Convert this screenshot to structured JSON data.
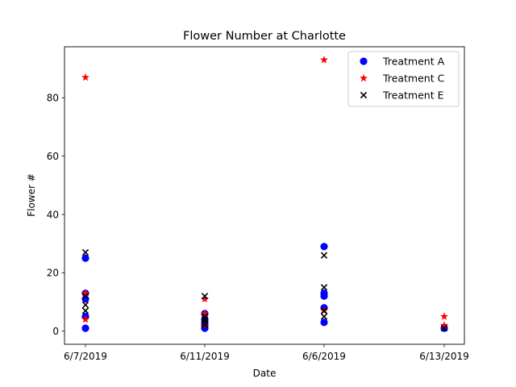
{
  "chart_data": {
    "type": "scatter",
    "title": "Flower Number at Charlotte",
    "xlabel": "Date",
    "ylabel": "Flower #",
    "categories": [
      "6/7/2019",
      "6/11/2019",
      "6/6/2019",
      "6/13/2019"
    ],
    "ylim": [
      -4.5,
      97.5
    ],
    "yticks": [
      0,
      20,
      40,
      60,
      80
    ],
    "grid": false,
    "legend_position": "top-right",
    "series": [
      {
        "name": "Treatment A",
        "marker": "circle",
        "color": "#0000ff",
        "points": [
          {
            "x": "6/7/2019",
            "y": 25
          },
          {
            "x": "6/7/2019",
            "y": 13
          },
          {
            "x": "6/7/2019",
            "y": 11
          },
          {
            "x": "6/7/2019",
            "y": 5
          },
          {
            "x": "6/7/2019",
            "y": 1
          },
          {
            "x": "6/11/2019",
            "y": 6
          },
          {
            "x": "6/11/2019",
            "y": 4
          },
          {
            "x": "6/11/2019",
            "y": 3
          },
          {
            "x": "6/11/2019",
            "y": 2
          },
          {
            "x": "6/11/2019",
            "y": 1
          },
          {
            "x": "6/6/2019",
            "y": 29
          },
          {
            "x": "6/6/2019",
            "y": 13
          },
          {
            "x": "6/6/2019",
            "y": 12
          },
          {
            "x": "6/6/2019",
            "y": 8
          },
          {
            "x": "6/6/2019",
            "y": 3
          },
          {
            "x": "6/13/2019",
            "y": 1
          }
        ]
      },
      {
        "name": "Treatment C",
        "marker": "star",
        "color": "#ff0000",
        "points": [
          {
            "x": "6/7/2019",
            "y": 87
          },
          {
            "x": "6/7/2019",
            "y": 13
          },
          {
            "x": "6/7/2019",
            "y": 4
          },
          {
            "x": "6/11/2019",
            "y": 11
          },
          {
            "x": "6/11/2019",
            "y": 6
          },
          {
            "x": "6/11/2019",
            "y": 2
          },
          {
            "x": "6/6/2019",
            "y": 93
          },
          {
            "x": "6/6/2019",
            "y": 7
          },
          {
            "x": "6/13/2019",
            "y": 5
          },
          {
            "x": "6/13/2019",
            "y": 2
          }
        ]
      },
      {
        "name": "Treatment E",
        "marker": "x",
        "color": "#000000",
        "points": [
          {
            "x": "6/7/2019",
            "y": 27
          },
          {
            "x": "6/7/2019",
            "y": 12
          },
          {
            "x": "6/7/2019",
            "y": 9
          },
          {
            "x": "6/7/2019",
            "y": 7
          },
          {
            "x": "6/11/2019",
            "y": 12
          },
          {
            "x": "6/11/2019",
            "y": 5
          },
          {
            "x": "6/11/2019",
            "y": 4
          },
          {
            "x": "6/11/2019",
            "y": 3
          },
          {
            "x": "6/11/2019",
            "y": 2
          },
          {
            "x": "6/6/2019",
            "y": 26
          },
          {
            "x": "6/6/2019",
            "y": 15
          },
          {
            "x": "6/6/2019",
            "y": 7
          },
          {
            "x": "6/6/2019",
            "y": 5
          },
          {
            "x": "6/13/2019",
            "y": 1
          }
        ]
      }
    ]
  }
}
